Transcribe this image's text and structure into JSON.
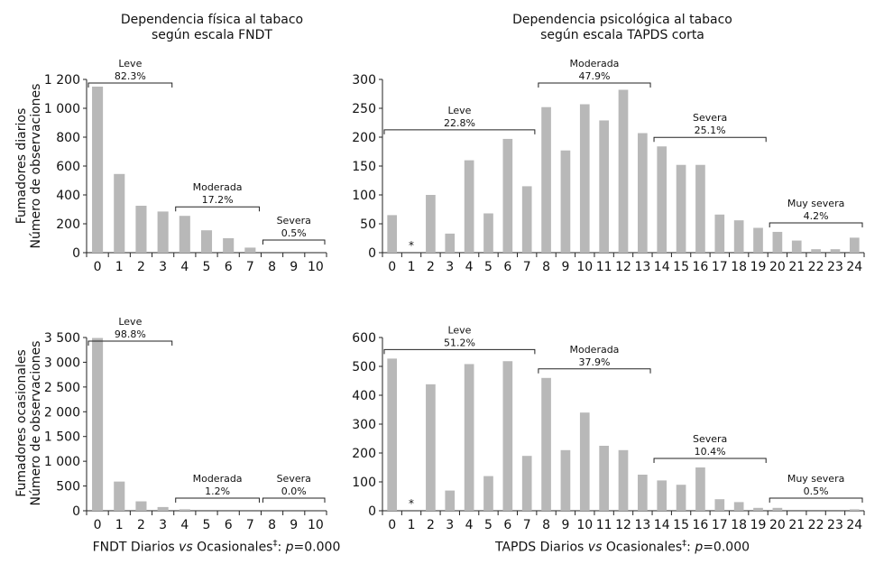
{
  "titles": {
    "left_line1": "Dependencia física al tabaco",
    "left_line2": "según escala FNDT",
    "right_line1": "Dependencia psicológica al tabaco",
    "right_line2": "según escala TAPDS corta"
  },
  "row_labels": {
    "top_group": "Fumadores diarios",
    "top_measure": "Número de observaciones",
    "bottom_group": "Fumadores ocasionales",
    "bottom_measure": "Número de observaciones"
  },
  "footers": {
    "left": {
      "pre": "FNDT Diarios ",
      "vs": "vs",
      "mid": " Ocasionales",
      "dagger": "‡",
      "post": ": ",
      "p": "p",
      "val": "=0.000"
    },
    "right": {
      "pre": "TAPDS Diarios ",
      "vs": "vs",
      "mid": " Ocasionales",
      "dagger": "‡",
      "post": ": ",
      "p": "p",
      "val": "=0.000"
    }
  },
  "colors": {
    "bar": "#b8b8b8",
    "axis": "#222222"
  },
  "chart_data": [
    {
      "id": "fndt-diarios",
      "type": "bar",
      "categories": [
        "0",
        "1",
        "2",
        "3",
        "4",
        "5",
        "6",
        "7",
        "8",
        "9",
        "10"
      ],
      "values": [
        1150,
        545,
        325,
        285,
        255,
        155,
        100,
        35,
        0,
        0,
        0
      ],
      "ylim": [
        0,
        1200
      ],
      "yticks": [
        0,
        200,
        400,
        600,
        800,
        1000,
        1200
      ],
      "ytick_labels": [
        "0",
        "200",
        "400",
        "600",
        "800",
        "1 000",
        "1 200"
      ],
      "groups": [
        {
          "name": "Leve",
          "pct": "82.3%",
          "from": 0,
          "to": 3
        },
        {
          "name": "Moderada",
          "pct": "17.2%",
          "from": 4,
          "to": 7
        },
        {
          "name": "Severa",
          "pct": "0.5%",
          "from": 8,
          "to": 10
        }
      ],
      "asterisks": []
    },
    {
      "id": "tapds-diarios",
      "type": "bar",
      "categories": [
        "0",
        "1",
        "2",
        "3",
        "4",
        "5",
        "6",
        "7",
        "8",
        "9",
        "10",
        "11",
        "12",
        "13",
        "14",
        "15",
        "16",
        "17",
        "18",
        "19",
        "20",
        "21",
        "22",
        "23",
        "24"
      ],
      "values": [
        65,
        0,
        100,
        33,
        160,
        68,
        197,
        115,
        252,
        177,
        257,
        229,
        282,
        207,
        184,
        152,
        152,
        66,
        56,
        43,
        36,
        21,
        6,
        6,
        26
      ],
      "ylim": [
        0,
        300
      ],
      "yticks": [
        0,
        50,
        100,
        150,
        200,
        250,
        300
      ],
      "ytick_labels": [
        "0",
        "50",
        "100",
        "150",
        "200",
        "250",
        "300"
      ],
      "groups": [
        {
          "name": "Leve",
          "pct": "22.8%",
          "from": 0,
          "to": 7
        },
        {
          "name": "Moderada",
          "pct": "47.9%",
          "from": 8,
          "to": 13
        },
        {
          "name": "Severa",
          "pct": "25.1%",
          "from": 14,
          "to": 19
        },
        {
          "name": "Muy severa",
          "pct": "4.2%",
          "from": 20,
          "to": 24
        }
      ],
      "asterisks": [
        1
      ]
    },
    {
      "id": "fndt-ocasionales",
      "type": "bar",
      "categories": [
        "0",
        "1",
        "2",
        "3",
        "4",
        "5",
        "6",
        "7",
        "8",
        "9",
        "10"
      ],
      "values": [
        3490,
        590,
        190,
        75,
        30,
        0,
        0,
        0,
        0,
        0,
        0
      ],
      "ylim": [
        0,
        3500
      ],
      "yticks": [
        0,
        500,
        1000,
        1500,
        2000,
        2500,
        3000,
        3500
      ],
      "ytick_labels": [
        "0",
        "500",
        "1 000",
        "1 500",
        "2 000",
        "2 500",
        "3 000",
        "3 500"
      ],
      "groups": [
        {
          "name": "Leve",
          "pct": "98.8%",
          "from": 0,
          "to": 3
        },
        {
          "name": "Moderada",
          "pct": "1.2%",
          "from": 4,
          "to": 7
        },
        {
          "name": "Severa",
          "pct": "0.0%",
          "from": 8,
          "to": 10
        }
      ],
      "asterisks": []
    },
    {
      "id": "tapds-ocasionales",
      "type": "bar",
      "categories": [
        "0",
        "1",
        "2",
        "3",
        "4",
        "5",
        "6",
        "7",
        "8",
        "9",
        "10",
        "11",
        "12",
        "13",
        "14",
        "15",
        "16",
        "17",
        "18",
        "19",
        "20",
        "21",
        "22",
        "23",
        "24"
      ],
      "values": [
        527,
        0,
        438,
        70,
        508,
        120,
        518,
        190,
        460,
        210,
        340,
        225,
        210,
        125,
        105,
        90,
        150,
        40,
        30,
        10,
        10,
        0,
        0,
        0,
        5
      ],
      "ylim": [
        0,
        600
      ],
      "yticks": [
        0,
        100,
        200,
        300,
        400,
        500,
        600
      ],
      "ytick_labels": [
        "0",
        "100",
        "200",
        "300",
        "400",
        "500",
        "600"
      ],
      "groups": [
        {
          "name": "Leve",
          "pct": "51.2%",
          "from": 0,
          "to": 7
        },
        {
          "name": "Moderada",
          "pct": "37.9%",
          "from": 8,
          "to": 13
        },
        {
          "name": "Severa",
          "pct": "10.4%",
          "from": 14,
          "to": 19
        },
        {
          "name": "Muy severa",
          "pct": "0.5%",
          "from": 20,
          "to": 24
        }
      ],
      "asterisks": [
        1
      ]
    }
  ]
}
